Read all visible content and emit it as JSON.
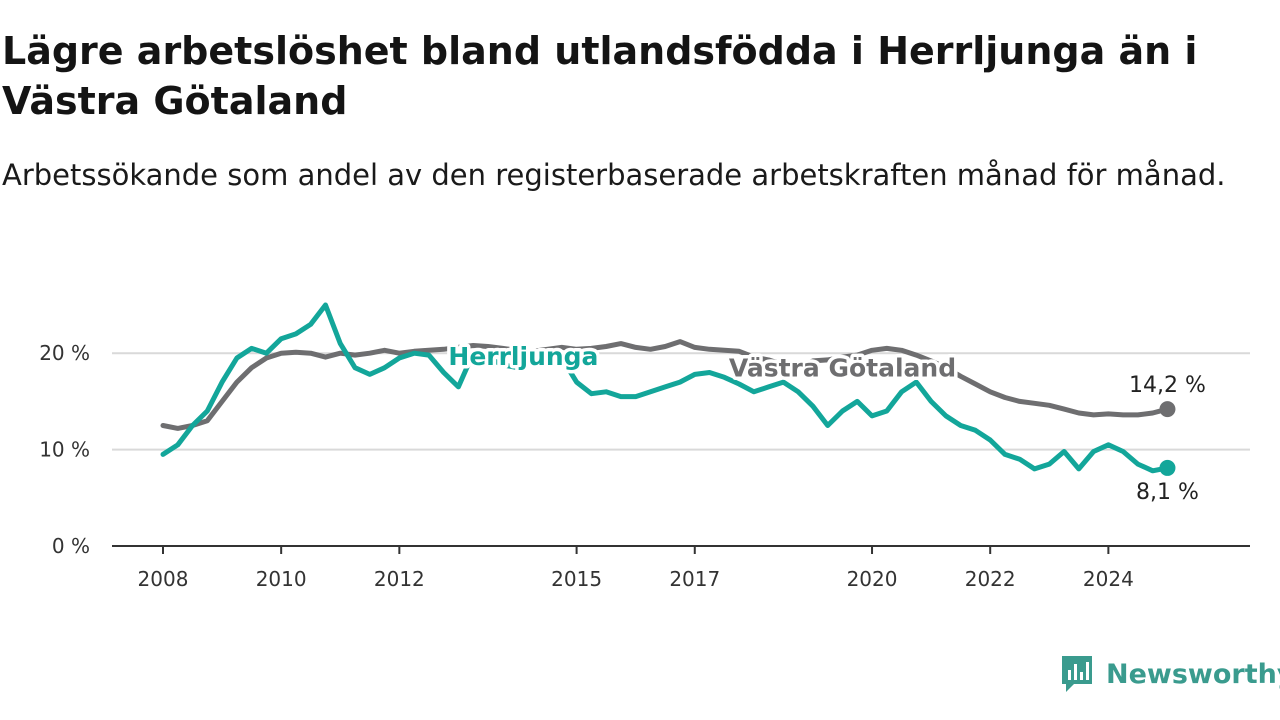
{
  "chart_data": {
    "type": "line",
    "title": "Lägre arbetslöshet bland utlandsfödda i Herrljunga än i Västra Götaland",
    "subtitle": "Arbetssökande som andel av den registerbaserade arbetskraften månad för månad.",
    "xlabel": "",
    "ylabel": "",
    "x_ticks": [
      "2008",
      "2010",
      "2012",
      "2015",
      "2017",
      "2020",
      "2022",
      "2024"
    ],
    "y_ticks": [
      "0 %",
      "10 %",
      "20 %"
    ],
    "ylim": [
      0,
      25
    ],
    "xlim": [
      2008,
      2025.5
    ],
    "grid": true,
    "colors": {
      "Herrljunga": "#13a69a",
      "Västra Götaland": "#6e6e70"
    },
    "series": [
      {
        "name": "Herrljunga",
        "end_label": "8,1 %",
        "x": [
          2008.0,
          2008.25,
          2008.5,
          2008.75,
          2009.0,
          2009.25,
          2009.5,
          2009.75,
          2010.0,
          2010.25,
          2010.5,
          2010.75,
          2011.0,
          2011.25,
          2011.5,
          2011.75,
          2012.0,
          2012.25,
          2012.5,
          2012.75,
          2013.0,
          2013.25,
          2013.5,
          2013.75,
          2014.0,
          2014.25,
          2014.5,
          2014.75,
          2015.0,
          2015.25,
          2015.5,
          2015.75,
          2016.0,
          2016.25,
          2016.5,
          2016.75,
          2017.0,
          2017.25,
          2017.5,
          2017.75,
          2018.0,
          2018.25,
          2018.5,
          2018.75,
          2019.0,
          2019.25,
          2019.5,
          2019.75,
          2020.0,
          2020.25,
          2020.5,
          2020.75,
          2021.0,
          2021.25,
          2021.5,
          2021.75,
          2022.0,
          2022.25,
          2022.5,
          2022.75,
          2023.0,
          2023.25,
          2023.5,
          2023.75,
          2024.0,
          2024.25,
          2024.5,
          2024.75,
          2025.0
        ],
        "values": [
          9.5,
          10.5,
          12.5,
          14.0,
          17.0,
          19.5,
          20.5,
          20.0,
          21.5,
          22.0,
          23.0,
          25.0,
          21.0,
          18.5,
          17.8,
          18.5,
          19.5,
          20.0,
          19.8,
          18.0,
          16.5,
          20.0,
          19.5,
          18.8,
          18.5,
          19.0,
          19.8,
          19.5,
          17.0,
          15.8,
          16.0,
          15.5,
          15.5,
          16.0,
          16.5,
          17.0,
          17.8,
          18.0,
          17.5,
          16.8,
          16.0,
          16.5,
          17.0,
          16.0,
          14.5,
          12.5,
          14.0,
          15.0,
          13.5,
          14.0,
          16.0,
          17.0,
          15.0,
          13.5,
          12.5,
          12.0,
          11.0,
          9.5,
          9.0,
          8.0,
          8.5,
          9.8,
          8.0,
          9.8,
          10.5,
          9.8,
          8.5,
          7.8,
          8.1
        ]
      },
      {
        "name": "Västra Götaland",
        "end_label": "14,2 %",
        "x": [
          2008.0,
          2008.25,
          2008.5,
          2008.75,
          2009.0,
          2009.25,
          2009.5,
          2009.75,
          2010.0,
          2010.25,
          2010.5,
          2010.75,
          2011.0,
          2011.25,
          2011.5,
          2011.75,
          2012.0,
          2012.25,
          2012.5,
          2012.75,
          2013.0,
          2013.25,
          2013.5,
          2013.75,
          2014.0,
          2014.25,
          2014.5,
          2014.75,
          2015.0,
          2015.25,
          2015.5,
          2015.75,
          2016.0,
          2016.25,
          2016.5,
          2016.75,
          2017.0,
          2017.25,
          2017.5,
          2017.75,
          2018.0,
          2018.25,
          2018.5,
          2018.75,
          2019.0,
          2019.25,
          2019.5,
          2019.75,
          2020.0,
          2020.25,
          2020.5,
          2020.75,
          2021.0,
          2021.25,
          2021.5,
          2021.75,
          2022.0,
          2022.25,
          2022.5,
          2022.75,
          2023.0,
          2023.25,
          2023.5,
          2023.75,
          2024.0,
          2024.25,
          2024.5,
          2024.75,
          2025.0
        ],
        "values": [
          12.5,
          12.2,
          12.5,
          13.0,
          15.0,
          17.0,
          18.5,
          19.5,
          20.0,
          20.1,
          20.0,
          19.6,
          20.0,
          19.8,
          20.0,
          20.3,
          20.0,
          20.2,
          20.3,
          20.4,
          20.6,
          20.8,
          20.7,
          20.5,
          20.3,
          20.2,
          20.4,
          20.6,
          20.4,
          20.5,
          20.7,
          21.0,
          20.6,
          20.4,
          20.7,
          21.2,
          20.6,
          20.4,
          20.3,
          20.2,
          19.6,
          19.3,
          18.8,
          18.6,
          19.2,
          19.3,
          19.6,
          19.8,
          20.3,
          20.5,
          20.3,
          19.8,
          19.2,
          18.5,
          17.6,
          16.8,
          16.0,
          15.4,
          15.0,
          14.8,
          14.6,
          14.2,
          13.8,
          13.6,
          13.7,
          13.6,
          13.6,
          13.8,
          14.2
        ]
      }
    ]
  },
  "brand": {
    "name": "Newsworthy",
    "color": "#3a9b8e"
  }
}
